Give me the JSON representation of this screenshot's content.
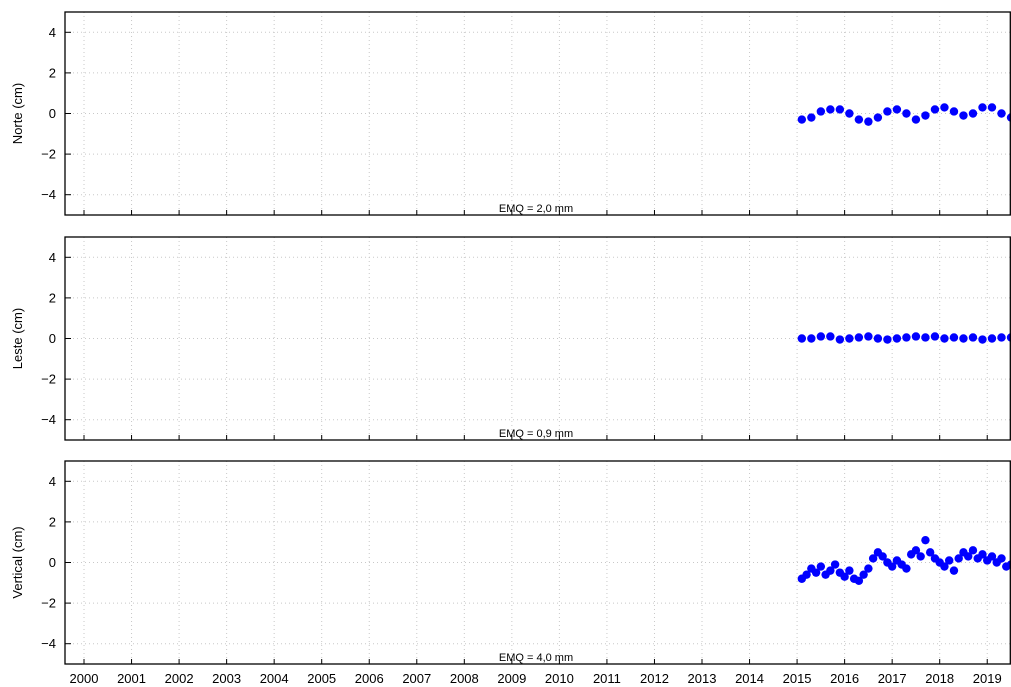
{
  "chart_data": [
    {
      "type": "scatter",
      "ylabel": "Norte (cm)",
      "annotation": "EMQ = 2,0 mm",
      "xlim": [
        1999.6,
        2019.5
      ],
      "ylim": [
        -5,
        5
      ],
      "yticks": [
        {
          "v": 4,
          "label": "4"
        },
        {
          "v": 2,
          "label": "2"
        },
        {
          "v": 0,
          "label": "0"
        },
        {
          "v": -2,
          "label": "−2"
        },
        {
          "v": -4,
          "label": "−4"
        }
      ],
      "grid": true,
      "color": "#0000ff",
      "series": [
        {
          "x": [
            2015.1,
            2015.3,
            2015.5,
            2015.7,
            2015.9,
            2016.1,
            2016.3,
            2016.5,
            2016.7,
            2016.9,
            2017.1,
            2017.3,
            2017.5,
            2017.7,
            2017.9,
            2018.1,
            2018.3,
            2018.5,
            2018.7,
            2018.9,
            2019.1,
            2019.3,
            2019.5
          ],
          "y": [
            -0.3,
            -0.2,
            0.1,
            0.2,
            0.2,
            0.0,
            -0.3,
            -0.4,
            -0.2,
            0.1,
            0.2,
            0.0,
            -0.3,
            -0.1,
            0.2,
            0.3,
            0.1,
            -0.1,
            0.0,
            0.3,
            0.3,
            0.0,
            -0.2
          ]
        }
      ]
    },
    {
      "type": "scatter",
      "ylabel": "Leste (cm)",
      "annotation": "EMQ = 0,9 mm",
      "xlim": [
        1999.6,
        2019.5
      ],
      "ylim": [
        -5,
        5
      ],
      "yticks": [
        {
          "v": 4,
          "label": "4"
        },
        {
          "v": 2,
          "label": "2"
        },
        {
          "v": 0,
          "label": "0"
        },
        {
          "v": -2,
          "label": "−2"
        },
        {
          "v": -4,
          "label": "−4"
        }
      ],
      "grid": true,
      "color": "#0000ff",
      "series": [
        {
          "x": [
            2015.1,
            2015.3,
            2015.5,
            2015.7,
            2015.9,
            2016.1,
            2016.3,
            2016.5,
            2016.7,
            2016.9,
            2017.1,
            2017.3,
            2017.5,
            2017.7,
            2017.9,
            2018.1,
            2018.3,
            2018.5,
            2018.7,
            2018.9,
            2019.1,
            2019.3,
            2019.5
          ],
          "y": [
            0.0,
            0.0,
            0.1,
            0.1,
            -0.05,
            0.0,
            0.05,
            0.1,
            0.0,
            -0.05,
            0.0,
            0.05,
            0.1,
            0.05,
            0.1,
            0.0,
            0.05,
            0.0,
            0.05,
            -0.05,
            0.0,
            0.05,
            0.05
          ]
        }
      ]
    },
    {
      "type": "scatter",
      "ylabel": "Vertical (cm)",
      "annotation": "EMQ = 4,0 mm",
      "xlim": [
        1999.6,
        2019.5
      ],
      "ylim": [
        -5,
        5
      ],
      "yticks": [
        {
          "v": 4,
          "label": "4"
        },
        {
          "v": 2,
          "label": "2"
        },
        {
          "v": 0,
          "label": "0"
        },
        {
          "v": -2,
          "label": "−2"
        },
        {
          "v": -4,
          "label": "−4"
        }
      ],
      "grid": true,
      "color": "#0000ff",
      "series": [
        {
          "x": [
            2015.1,
            2015.2,
            2015.3,
            2015.4,
            2015.5,
            2015.6,
            2015.7,
            2015.8,
            2015.9,
            2016.0,
            2016.1,
            2016.2,
            2016.3,
            2016.4,
            2016.5,
            2016.6,
            2016.7,
            2016.8,
            2016.9,
            2017.0,
            2017.1,
            2017.2,
            2017.3,
            2017.4,
            2017.5,
            2017.6,
            2017.7,
            2017.8,
            2017.9,
            2018.0,
            2018.1,
            2018.2,
            2018.3,
            2018.4,
            2018.5,
            2018.6,
            2018.7,
            2018.8,
            2018.9,
            2019.0,
            2019.1,
            2019.2,
            2019.3,
            2019.4,
            2019.5
          ],
          "y": [
            -0.8,
            -0.6,
            -0.3,
            -0.5,
            -0.2,
            -0.6,
            -0.4,
            -0.1,
            -0.5,
            -0.7,
            -0.4,
            -0.8,
            -0.9,
            -0.6,
            -0.3,
            0.2,
            0.5,
            0.3,
            0.0,
            -0.2,
            0.1,
            -0.1,
            -0.3,
            0.4,
            0.6,
            0.3,
            1.1,
            0.5,
            0.2,
            0.0,
            -0.2,
            0.1,
            -0.4,
            0.2,
            0.5,
            0.3,
            0.6,
            0.2,
            0.4,
            0.1,
            0.3,
            0.0,
            0.2,
            -0.2,
            -0.1
          ]
        }
      ]
    }
  ],
  "xaxis": {
    "ticks": [
      "2000",
      "2001",
      "2002",
      "2003",
      "2004",
      "2005",
      "2006",
      "2007",
      "2008",
      "2009",
      "2010",
      "2011",
      "2012",
      "2013",
      "2014",
      "2015",
      "2016",
      "2017",
      "2018",
      "2019"
    ]
  }
}
